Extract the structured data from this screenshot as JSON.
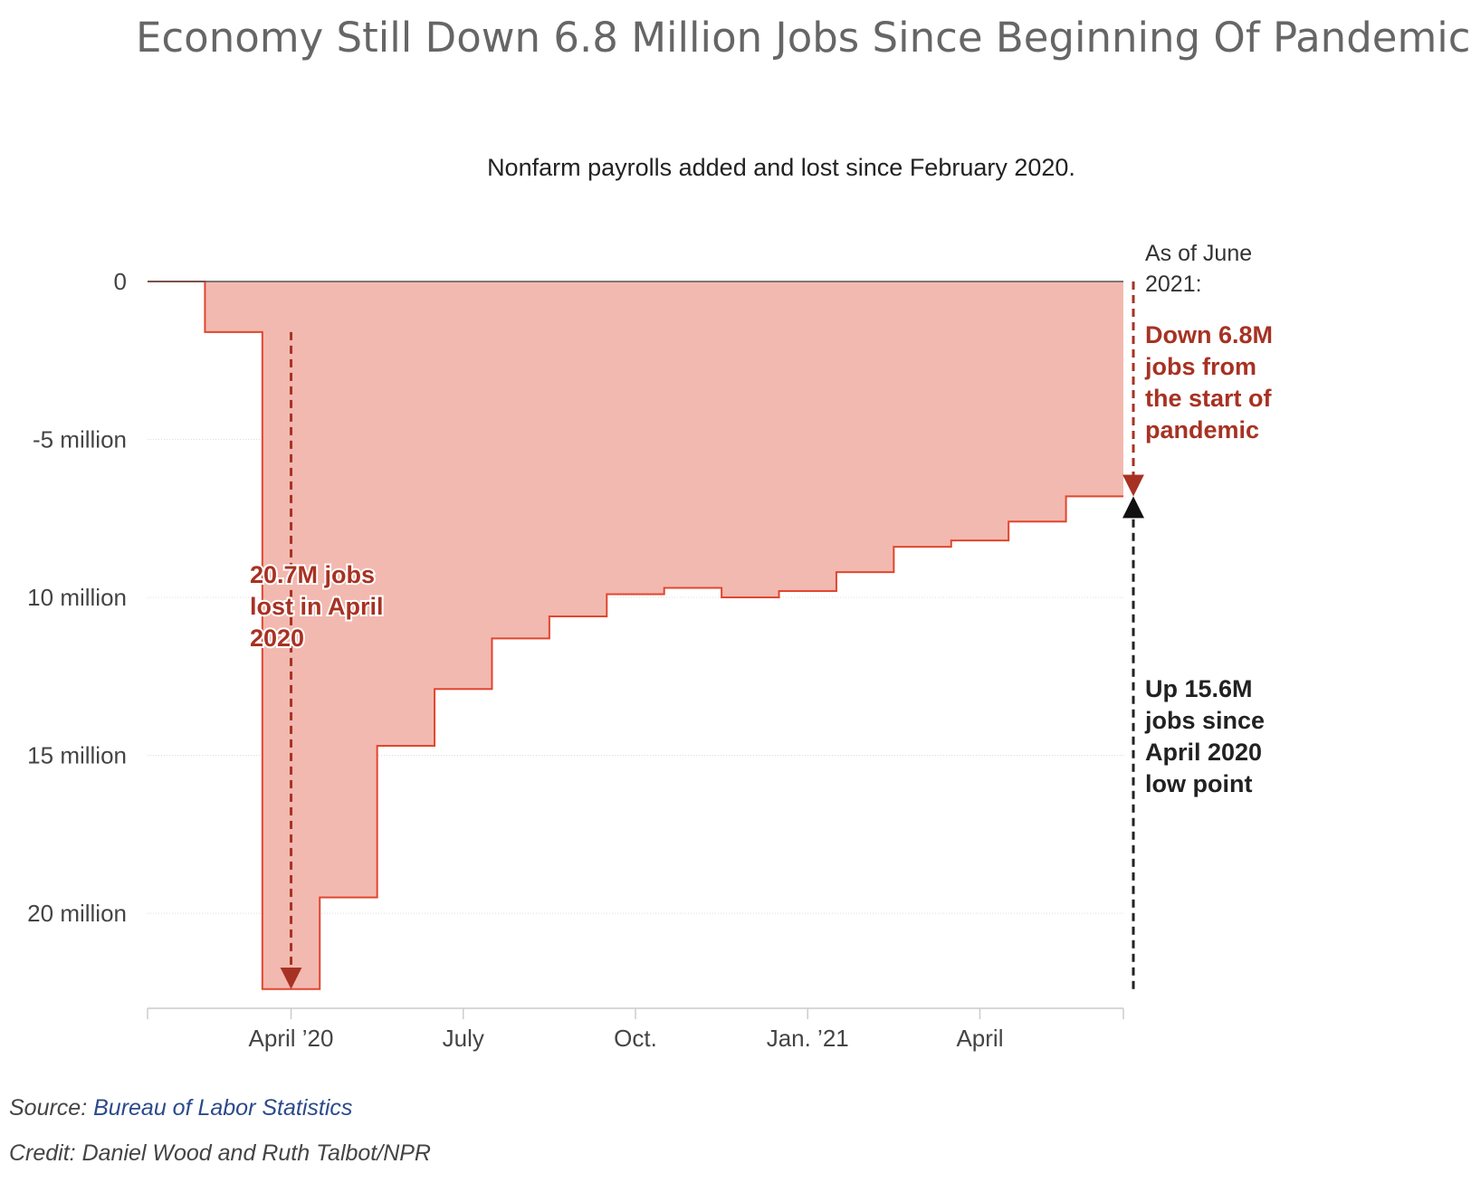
{
  "chart_data": {
    "type": "area",
    "title": "Economy Still Down 6.8 Million Jobs Since Beginning Of Pandemic",
    "subtitle": "Nonfarm payrolls added and lost since February 2020.",
    "xlabel": "",
    "ylabel": "",
    "step": true,
    "months": [
      "2020-02",
      "2020-03",
      "2020-04",
      "2020-05",
      "2020-06",
      "2020-07",
      "2020-08",
      "2020-09",
      "2020-10",
      "2020-11",
      "2020-12",
      "2021-01",
      "2021-02",
      "2021-03",
      "2021-04",
      "2021-05",
      "2021-06"
    ],
    "values": [
      0,
      -1.6,
      -22.4,
      -19.5,
      -14.7,
      -12.9,
      -11.3,
      -10.6,
      -9.9,
      -9.7,
      -10.0,
      -9.8,
      -9.2,
      -8.4,
      -8.2,
      -7.6,
      -6.8
    ],
    "y_ticks": [
      {
        "value": 0,
        "label": "0"
      },
      {
        "value": -5,
        "label": "-5 million"
      },
      {
        "value": -10,
        "label": "10 million"
      },
      {
        "value": -15,
        "label": "15 million"
      },
      {
        "value": -20,
        "label": "20 million"
      }
    ],
    "x_ticks": [
      {
        "month": "2020-04",
        "label": "April ’20"
      },
      {
        "month": "2020-07",
        "label": "July"
      },
      {
        "month": "2020-10",
        "label": "Oct."
      },
      {
        "month": "2021-01",
        "label": "Jan. ’21"
      },
      {
        "month": "2021-04",
        "label": "April"
      }
    ],
    "ylim": [
      -23,
      0
    ],
    "grid": true,
    "colors": {
      "fill": "#f2b9b0",
      "line": "#e0462f",
      "annotation_red": "#a73223",
      "annotation_dark": "#222222"
    },
    "annotations": {
      "april_loss": {
        "lines": [
          "20.7M jobs",
          "lost in April",
          "2020"
        ],
        "from": -1.6,
        "to": -22.4
      },
      "as_of": {
        "lines": [
          "As of June",
          "2021:"
        ]
      },
      "down_since_start": {
        "lines": [
          "Down 6.8M",
          "jobs from",
          "the start of",
          "pandemic"
        ],
        "from": 0,
        "to": -6.8
      },
      "up_since_low": {
        "lines": [
          "Up 15.6M",
          "jobs since",
          "April 2020",
          "low point"
        ],
        "from": -22.4,
        "to": -6.8
      }
    }
  },
  "footer": {
    "source_prefix": "Source: ",
    "source_name": "Bureau of Labor Statistics",
    "credit": "Credit: Daniel Wood and Ruth Talbot/NPR"
  }
}
